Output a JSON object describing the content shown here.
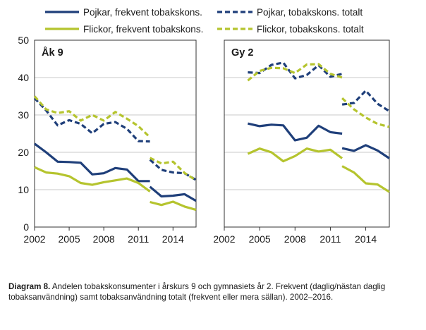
{
  "chart_data": [
    {
      "type": "line",
      "title": "Åk 9",
      "ylim": [
        0,
        50
      ],
      "yticks": [
        0,
        10,
        20,
        30,
        40,
        50
      ],
      "xlim": [
        2002,
        2016
      ],
      "xticks": [
        "2002",
        "2005",
        "2008",
        "2011",
        "2014"
      ],
      "grid": true,
      "series": [
        {
          "name": "Pojkar, frekvent tobakskons.",
          "color": "#1f3f7a",
          "dashed": false,
          "segments": [
            {
              "x": [
                2002,
                2003,
                2004,
                2005,
                2006,
                2007,
                2008,
                2009,
                2010,
                2011,
                2012
              ],
              "y": [
                22.3,
                20,
                17.5,
                17.4,
                17.2,
                14.1,
                14.4,
                15.8,
                15.4,
                12.3,
                12.3
              ]
            },
            {
              "x": [
                2012,
                2013,
                2014,
                2015,
                2016
              ],
              "y": [
                10.8,
                8.2,
                8.4,
                8.8,
                7
              ]
            }
          ]
        },
        {
          "name": "Flickor, frekvent tobakskons.",
          "color": "#b5c42e",
          "dashed": false,
          "segments": [
            {
              "x": [
                2002,
                2003,
                2004,
                2005,
                2006,
                2007,
                2008,
                2009,
                2010,
                2011,
                2012
              ],
              "y": [
                16,
                14.6,
                14.3,
                13.6,
                11.8,
                11.3,
                12,
                12.5,
                13,
                11.8,
                9.5
              ]
            },
            {
              "x": [
                2012,
                2013,
                2014,
                2015,
                2016
              ],
              "y": [
                6.7,
                5.9,
                6.8,
                5.5,
                4.6
              ]
            }
          ]
        },
        {
          "name": "Pojkar, tobakskons. totalt",
          "color": "#1f3f7a",
          "dashed": true,
          "segments": [
            {
              "x": [
                2002,
                2003,
                2004,
                2005,
                2006,
                2007,
                2008,
                2009,
                2010,
                2011,
                2012
              ],
              "y": [
                34.5,
                31.2,
                27.2,
                28.6,
                27.6,
                25.1,
                27.6,
                28.1,
                26.3,
                23,
                22.9
              ]
            },
            {
              "x": [
                2012,
                2013,
                2014,
                2015,
                2016
              ],
              "y": [
                18,
                15.3,
                14.6,
                14.4,
                12.6
              ]
            }
          ]
        },
        {
          "name": "Flickor, tobakskons. totalt",
          "color": "#b5c42e",
          "dashed": true,
          "segments": [
            {
              "x": [
                2002,
                2003,
                2004,
                2005,
                2006,
                2007,
                2008,
                2009,
                2010,
                2011,
                2012
              ],
              "y": [
                35,
                31.5,
                30.5,
                31,
                28.5,
                30,
                28.5,
                30.8,
                29,
                27,
                24
              ]
            },
            {
              "x": [
                2012,
                2013,
                2014,
                2015,
                2016
              ],
              "y": [
                18.5,
                17,
                17.5,
                14.5,
                12.5
              ]
            }
          ]
        }
      ]
    },
    {
      "type": "line",
      "title": "Gy 2",
      "ylim": [
        0,
        50
      ],
      "yticks": [
        0,
        10,
        20,
        30,
        40,
        50
      ],
      "xlim": [
        2002,
        2016
      ],
      "xticks": [
        "2002",
        "2005",
        "2008",
        "2011",
        "2014"
      ],
      "grid": true,
      "series": [
        {
          "name": "Pojkar, frekvent tobakskons.",
          "color": "#1f3f7a",
          "dashed": false,
          "segments": [
            {
              "x": [
                2004,
                2005,
                2006,
                2007,
                2008,
                2009,
                2010,
                2011,
                2012
              ],
              "y": [
                27.7,
                27,
                27.4,
                27.2,
                23.2,
                23.9,
                27.1,
                25.4,
                25
              ]
            },
            {
              "x": [
                2012,
                2013,
                2014,
                2015,
                2016
              ],
              "y": [
                21.1,
                20.4,
                21.9,
                20.5,
                18.4
              ]
            }
          ]
        },
        {
          "name": "Flickor, frekvent tobakskons.",
          "color": "#b5c42e",
          "dashed": false,
          "segments": [
            {
              "x": [
                2004,
                2005,
                2006,
                2007,
                2008,
                2009,
                2010,
                2011,
                2012
              ],
              "y": [
                19.6,
                21,
                20,
                17.6,
                19,
                21,
                20.2,
                20.7,
                18.4
              ]
            },
            {
              "x": [
                2012,
                2013,
                2014,
                2015,
                2016
              ],
              "y": [
                16.3,
                14.6,
                11.7,
                11.4,
                9.4
              ]
            }
          ]
        },
        {
          "name": "Pojkar, tobakskons. totalt",
          "color": "#1f3f7a",
          "dashed": true,
          "segments": [
            {
              "x": [
                2004,
                2005,
                2006,
                2007,
                2008,
                2009,
                2010,
                2011,
                2012
              ],
              "y": [
                41.4,
                41.2,
                43.4,
                44,
                39.8,
                40.7,
                43.3,
                40.2,
                41
              ]
            },
            {
              "x": [
                2012,
                2013,
                2014,
                2015,
                2016
              ],
              "y": [
                32.8,
                33.2,
                36.5,
                33,
                31
              ]
            }
          ]
        },
        {
          "name": "Flickor, tobakskons. totalt",
          "color": "#b5c42e",
          "dashed": true,
          "segments": [
            {
              "x": [
                2004,
                2005,
                2006,
                2007,
                2008,
                2009,
                2010,
                2011,
                2012
              ],
              "y": [
                39.2,
                41.8,
                42.6,
                42.5,
                41.2,
                43.5,
                43.6,
                41,
                40
              ]
            },
            {
              "x": [
                2012,
                2013,
                2014,
                2015,
                2016
              ],
              "y": [
                34.5,
                31.5,
                29.3,
                27.6,
                26.8
              ]
            }
          ]
        }
      ]
    }
  ],
  "legend": [
    {
      "label": "Pojkar, frekvent tobakskons.",
      "color": "#1f3f7a",
      "dashed": false
    },
    {
      "label": "Pojkar, tobakskons. totalt",
      "color": "#1f3f7a",
      "dashed": true
    },
    {
      "label": "Flickor, frekvent tobakskons.",
      "color": "#b5c42e",
      "dashed": false
    },
    {
      "label": "Flickor, tobakskons. totalt",
      "color": "#b5c42e",
      "dashed": true
    }
  ],
  "caption": {
    "label": "Diagram 8.",
    "text": " Andelen tobakskonsumenter i årskurs 9 och gymnasiets år 2. Frekvent (daglig/nästan daglig tobaksanvändning) samt tobaksanvändning totalt (frekvent eller mera sällan). 2002–2016."
  }
}
